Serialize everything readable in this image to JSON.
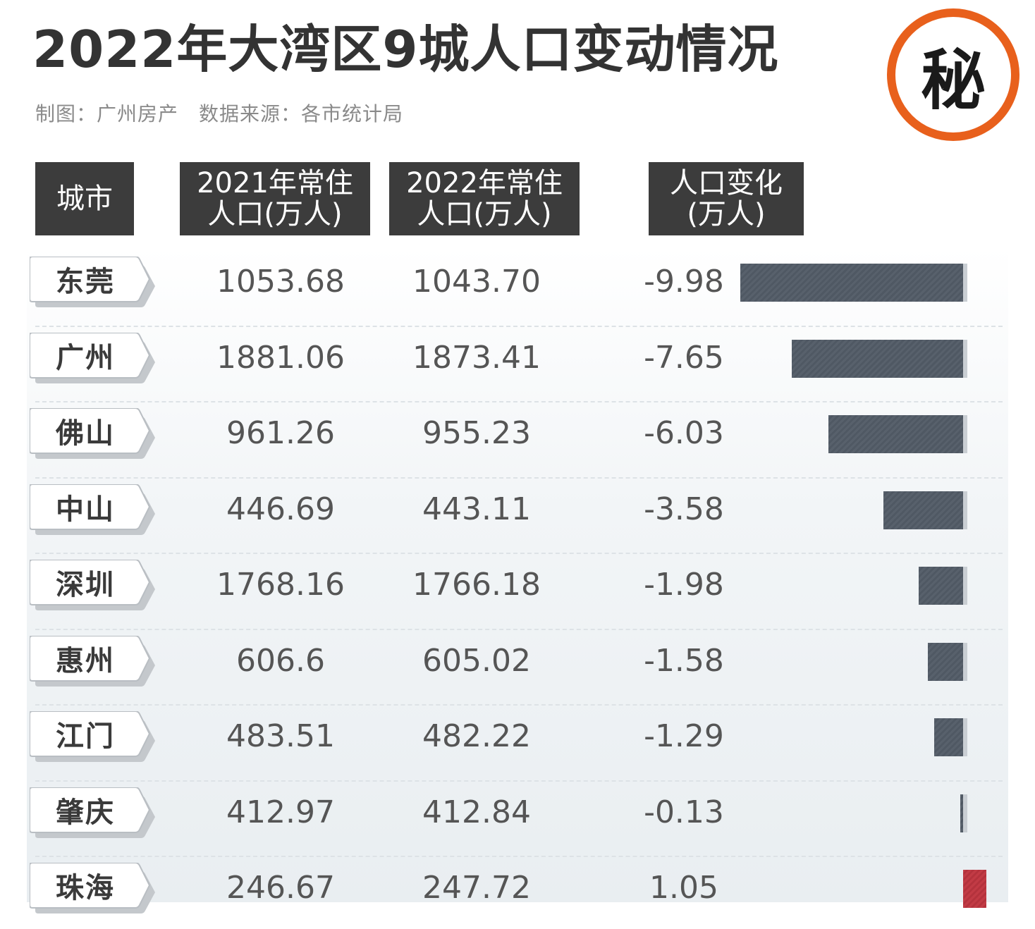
{
  "title": "2022年大湾区9城人口变动情况",
  "subtitle": "制图：广州房产　数据来源：各市统计局",
  "badge": "秘",
  "colors": {
    "badge_ring": "#e8601c",
    "header_bg": "#3c3c3c",
    "bar_negative": "#55606b",
    "bar_positive": "#c23b45"
  },
  "headers": {
    "city": "城市",
    "pop2021": [
      "2021年常住",
      "人口(万人)"
    ],
    "pop2022": [
      "2022年常住",
      "人口(万人)"
    ],
    "change": [
      "人口变化",
      "(万人)"
    ]
  },
  "chart_data": {
    "type": "bar",
    "orientation": "horizontal",
    "grid": false,
    "columns": [
      "城市",
      "2021年常住人口(万人)",
      "2022年常住人口(万人)",
      "人口变化(万人)"
    ],
    "rows": [
      {
        "city": "东莞",
        "pop2021": "1053.68",
        "pop2022": "1043.70",
        "change": "-9.98"
      },
      {
        "city": "广州",
        "pop2021": "1881.06",
        "pop2022": "1873.41",
        "change": "-7.65"
      },
      {
        "city": "佛山",
        "pop2021": "961.26",
        "pop2022": "955.23",
        "change": "-6.03"
      },
      {
        "city": "中山",
        "pop2021": "446.69",
        "pop2022": "443.11",
        "change": "-3.58"
      },
      {
        "city": "深圳",
        "pop2021": "1768.16",
        "pop2022": "1766.18",
        "change": "-1.98"
      },
      {
        "city": "惠州",
        "pop2021": "606.6",
        "pop2022": "605.02",
        "change": "-1.58"
      },
      {
        "city": "江门",
        "pop2021": "483.51",
        "pop2022": "482.22",
        "change": "-1.29"
      },
      {
        "city": "肇庆",
        "pop2021": "412.97",
        "pop2022": "412.84",
        "change": "-0.13"
      },
      {
        "city": "珠海",
        "pop2021": "246.67",
        "pop2022": "247.72",
        "change": "1.05"
      }
    ]
  }
}
